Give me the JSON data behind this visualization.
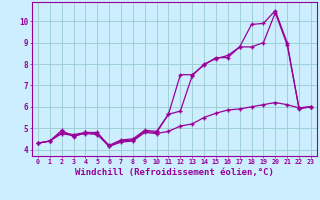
{
  "background_color": "#cceeff",
  "grid_color": "#99cccc",
  "line_color": "#990099",
  "marker_color": "#990099",
  "xlabel": "Windchill (Refroidissement éolien,°C)",
  "xlabel_fontsize": 6.5,
  "ylabel_values": [
    4,
    5,
    6,
    7,
    8,
    9,
    10
  ],
  "xlim": [
    -0.5,
    23.5
  ],
  "ylim": [
    3.7,
    10.9
  ],
  "x_ticks": [
    0,
    1,
    2,
    3,
    4,
    5,
    6,
    7,
    8,
    9,
    10,
    11,
    12,
    13,
    14,
    15,
    16,
    17,
    18,
    19,
    20,
    21,
    22,
    23
  ],
  "series1_x": [
    0,
    1,
    2,
    3,
    4,
    5,
    6,
    7,
    8,
    9,
    10,
    11,
    12,
    13,
    14,
    15,
    16,
    17,
    18,
    19,
    20,
    21,
    22,
    23
  ],
  "series1_y": [
    4.3,
    4.4,
    4.8,
    4.7,
    4.8,
    4.8,
    4.15,
    4.4,
    4.45,
    4.85,
    4.8,
    5.65,
    7.5,
    7.5,
    7.95,
    8.3,
    8.3,
    8.8,
    9.85,
    9.9,
    10.5,
    9.0,
    5.9,
    6.0
  ],
  "series2_x": [
    0,
    1,
    2,
    3,
    4,
    5,
    6,
    7,
    8,
    9,
    10,
    11,
    12,
    13,
    14,
    15,
    16,
    17,
    18,
    19,
    20,
    21,
    22,
    23
  ],
  "series2_y": [
    4.3,
    4.4,
    4.9,
    4.6,
    4.8,
    4.75,
    4.2,
    4.45,
    4.5,
    4.9,
    4.85,
    5.65,
    5.8,
    7.45,
    8.0,
    8.25,
    8.4,
    8.8,
    8.8,
    9.0,
    10.4,
    8.9,
    5.95,
    6.0
  ],
  "series3_x": [
    0,
    1,
    2,
    3,
    4,
    5,
    6,
    7,
    8,
    9,
    10,
    11,
    12,
    13,
    14,
    15,
    16,
    17,
    18,
    19,
    20,
    21,
    22,
    23
  ],
  "series3_y": [
    4.3,
    4.4,
    4.75,
    4.65,
    4.75,
    4.7,
    4.15,
    4.35,
    4.4,
    4.8,
    4.75,
    4.85,
    5.1,
    5.2,
    5.5,
    5.7,
    5.85,
    5.9,
    6.0,
    6.1,
    6.2,
    6.1,
    5.95,
    6.0
  ]
}
